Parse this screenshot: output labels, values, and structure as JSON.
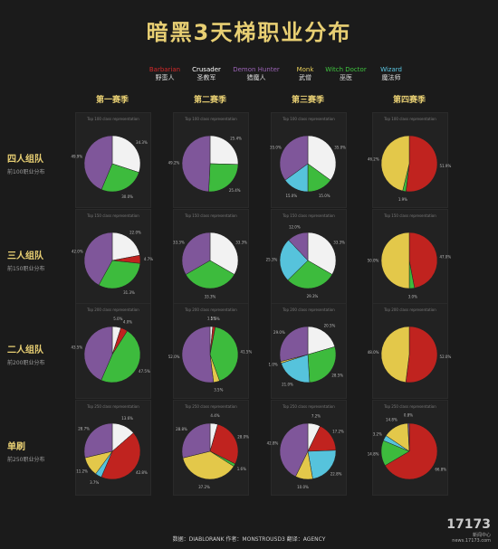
{
  "title": "暗黑3天梯职业分布",
  "colors": {
    "Barbarian": "#c0231f",
    "Crusader": "#f2f2f2",
    "Demon Hunter": "#7f569a",
    "Monk": "#e3c84a",
    "Witch Doctor": "#3dbb3d",
    "Wizard": "#56c3dc"
  },
  "legend": [
    {
      "en": "Barbarian",
      "zh": "野蛮人",
      "color": "#d3292a"
    },
    {
      "en": "Crusader",
      "zh": "圣教军",
      "color": "#ffffff"
    },
    {
      "en": "Demon Hunter",
      "zh": "猎魔人",
      "color": "#9a63b5"
    },
    {
      "en": "Monk",
      "zh": "武僧",
      "color": "#e8cf5a"
    },
    {
      "en": "Witch Doctor",
      "zh": "巫医",
      "color": "#3fc43f"
    },
    {
      "en": "Wizard",
      "zh": "魔法师",
      "color": "#5cc8e4"
    }
  ],
  "seasons": [
    "第一赛季",
    "第二赛季",
    "第三赛季",
    "第四赛季"
  ],
  "rows": [
    {
      "title": "四人组队",
      "sub": "前100职业分布"
    },
    {
      "title": "三人组队",
      "sub": "前150职业分布"
    },
    {
      "title": "二人组队",
      "sub": "前200职业分布"
    },
    {
      "title": "单刷",
      "sub": "前250职业分布"
    }
  ],
  "chart_data": {
    "type": "pie",
    "classes": [
      "Barbarian",
      "Crusader",
      "Demon Hunter",
      "Monk",
      "Witch Doctor",
      "Wizard"
    ],
    "grid": [
      [
        {
          "caption": "Top 100 class representation",
          "values": [
            0.0,
            34.3,
            49.9,
            0.0,
            30.0,
            0.0
          ]
        },
        {
          "caption": "Top 100 class representation",
          "values": [
            0.0,
            25.4,
            49.2,
            0.0,
            25.4,
            0.0
          ]
        },
        {
          "caption": "Top 100 class representation",
          "values": [
            0.0,
            35.0,
            35.0,
            0.0,
            15.0,
            15.0
          ]
        },
        {
          "caption": "Top 100 class representation",
          "values": [
            51.9,
            0.0,
            0.0,
            46.2,
            1.9,
            0.0
          ]
        }
      ],
      [
        {
          "caption": "Top 150 class representation",
          "values": [
            4.7,
            22.0,
            42.0,
            0.0,
            31.3,
            0.0
          ]
        },
        {
          "caption": "Top 150 class representation",
          "values": [
            0.0,
            33.3,
            33.3,
            0.0,
            33.3,
            0.0
          ]
        },
        {
          "caption": "Top 150 class representation",
          "values": [
            0.0,
            33.3,
            12.0,
            0.0,
            29.3,
            25.3
          ]
        },
        {
          "caption": "Top 150 class representation",
          "values": [
            47.0,
            0.0,
            0.0,
            50.0,
            3.0,
            0.0
          ]
        }
      ],
      [
        {
          "caption": "Top 200 class representation",
          "values": [
            4.0,
            5.0,
            43.5,
            0.0,
            47.5,
            0.0
          ]
        },
        {
          "caption": "Top 200 class representation",
          "values": [
            1.5,
            1.5,
            52.0,
            3.5,
            41.5,
            0.0
          ]
        },
        {
          "caption": "Top 200 class representation",
          "values": [
            0.0,
            20.5,
            29.0,
            1.0,
            28.5,
            21.0
          ]
        },
        {
          "caption": "Top 200 class representation",
          "values": [
            52.0,
            0.0,
            0.0,
            48.0,
            0.0,
            0.0
          ]
        }
      ],
      [
        {
          "caption": "Top 250 class representation",
          "values": [
            42.8,
            13.6,
            28.7,
            11.2,
            0.0,
            3.7
          ]
        },
        {
          "caption": "Top 250 class representation",
          "values": [
            28.0,
            4.4,
            28.8,
            37.2,
            1.6,
            0.0
          ]
        },
        {
          "caption": "Top 250 class representation",
          "values": [
            17.2,
            7.2,
            42.8,
            10.0,
            0.0,
            22.8
          ]
        },
        {
          "caption": "Top 250 class representation",
          "values": [
            66.8,
            0.0,
            0.8,
            14.8,
            14.8,
            3.2
          ]
        }
      ]
    ]
  },
  "footer": "数据：DIABLORANK 作者：MONSTROUSD3 翻译：AGENCY",
  "watermark": {
    "brand": "17173",
    "line": "新闻中心",
    "url": "news.17173.com"
  }
}
